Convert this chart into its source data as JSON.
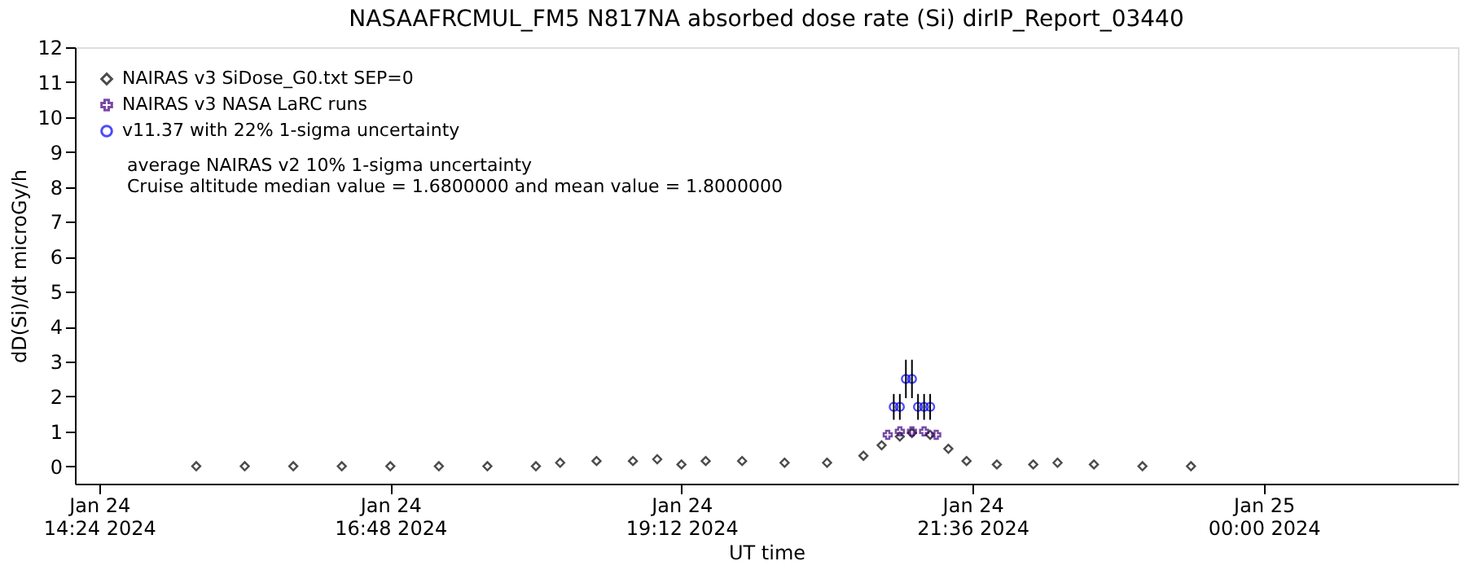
{
  "chart_data": {
    "type": "scatter",
    "title": "NASAAFRCMUL_FM5   N817NA absorbed dose rate (Si) dirIP_Report_03440",
    "xlabel": "UT time",
    "ylabel": "dD(Si)/dt microGy/h",
    "xlim": [
      "2024-01-24T14:12",
      "2024-01-25T01:36"
    ],
    "ylim": [
      -0.5,
      12
    ],
    "xticks": [
      {
        "value": "2024-01-24T14:24",
        "label": "Jan 24\n14:24 2024"
      },
      {
        "value": "2024-01-24T16:48",
        "label": "Jan 24\n16:48 2024"
      },
      {
        "value": "2024-01-24T19:12",
        "label": "Jan 24\n19:12 2024"
      },
      {
        "value": "2024-01-24T21:36",
        "label": "Jan 24\n21:36 2024"
      },
      {
        "value": "2024-01-25T00:00",
        "label": "Jan 25\n00:00 2024"
      }
    ],
    "yticks": [
      0,
      1,
      2,
      3,
      4,
      5,
      6,
      7,
      8,
      9,
      10,
      11,
      12
    ],
    "grid": false,
    "legend": "top left",
    "series": [
      {
        "name": "NAIRAS v3 SiDose_G0.txt SEP=0",
        "color": "#000000",
        "marker": "diamond",
        "x": [
          "2024-01-24T15:12",
          "2024-01-24T15:36",
          "2024-01-24T16:00",
          "2024-01-24T16:24",
          "2024-01-24T16:48",
          "2024-01-24T17:12",
          "2024-01-24T17:36",
          "2024-01-24T18:00",
          "2024-01-24T18:12",
          "2024-01-24T18:30",
          "2024-01-24T18:48",
          "2024-01-24T19:00",
          "2024-01-24T19:12",
          "2024-01-24T19:24",
          "2024-01-24T19:42",
          "2024-01-24T20:03",
          "2024-01-24T20:24",
          "2024-01-24T20:42",
          "2024-01-24T20:51",
          "2024-01-24T21:00",
          "2024-01-24T21:06",
          "2024-01-24T21:15",
          "2024-01-24T21:24",
          "2024-01-24T21:33",
          "2024-01-24T21:48",
          "2024-01-24T22:06",
          "2024-01-24T22:18",
          "2024-01-24T22:36",
          "2024-01-24T23:00",
          "2024-01-24T23:24"
        ],
        "values": [
          0,
          0,
          0,
          0,
          0,
          0,
          0,
          0,
          0.1,
          0.15,
          0.15,
          0.2,
          0.05,
          0.15,
          0.15,
          0.1,
          0.1,
          0.3,
          0.6,
          0.85,
          0.95,
          0.9,
          0.5,
          0.15,
          0.05,
          0.05,
          0.1,
          0.05,
          0,
          0
        ]
      },
      {
        "name": "NAIRAS v3 NASA LaRC runs",
        "color": "#400080",
        "marker": "cross",
        "x": [
          "2024-01-24T20:54",
          "2024-01-24T21:00",
          "2024-01-24T21:06",
          "2024-01-24T21:12",
          "2024-01-24T21:18"
        ],
        "values": [
          0.9,
          1.0,
          1.0,
          1.0,
          0.9
        ]
      },
      {
        "name": "v11.37 with 22% 1-sigma uncertainty",
        "color": "#0000ff",
        "marker": "circle",
        "x": [
          "2024-01-24T20:57",
          "2024-01-24T21:00",
          "2024-01-24T21:03",
          "2024-01-24T21:06",
          "2024-01-24T21:09",
          "2024-01-24T21:12",
          "2024-01-24T21:15"
        ],
        "values": [
          1.7,
          1.7,
          2.5,
          2.5,
          1.7,
          1.7,
          1.7
        ],
        "errors": [
          0.37,
          0.37,
          0.55,
          0.55,
          0.37,
          0.37,
          0.37
        ]
      }
    ],
    "annotations": [
      "average NAIRAS v2 10% 1-sigma uncertainty",
      "Cruise altitude median value = 1.6800000 and mean value = 1.8000000"
    ]
  }
}
